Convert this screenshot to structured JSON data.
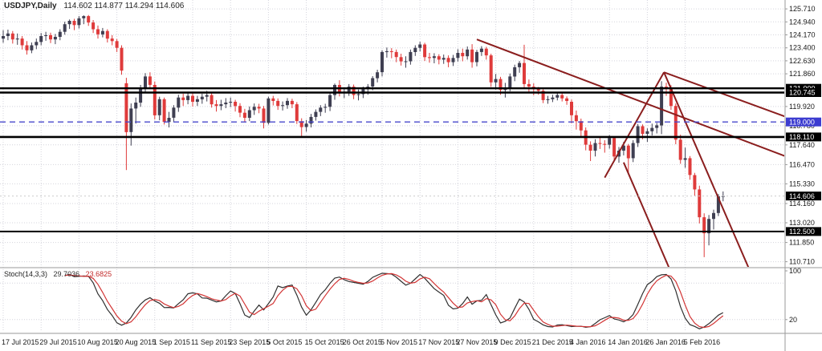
{
  "chart_data": {
    "type": "candlestick",
    "title": "USDJPY,Daily",
    "ohlc_display": "114.602 114.877 114.294 114.606",
    "price_range": [
      110.5,
      126.0
    ],
    "colors": {
      "bull": "#3f3f52",
      "bear": "#df3b3b",
      "trend": "#8b1e1e",
      "grid": "#d4d4dc",
      "axis_line": "#9a9a9a",
      "level_black": "#000000",
      "level_blue": "#4848cc",
      "current_price_box": "#000000"
    },
    "y_ticks": [
      125.71,
      124.94,
      124.17,
      123.4,
      122.63,
      121.86,
      119.92,
      118.78,
      117.64,
      116.47,
      115.33,
      114.16,
      113.02,
      111.85,
      110.71
    ],
    "price_axis_boxes": [
      {
        "price": 121.0,
        "text": "121.000",
        "bg": "#000000"
      },
      {
        "price": 120.745,
        "text": "120.745",
        "bg": "#000000"
      },
      {
        "price": 119.0,
        "text": "119.000",
        "bg": "#3c3cd0"
      },
      {
        "price": 118.11,
        "text": "118.110",
        "bg": "#000000"
      },
      {
        "price": 114.606,
        "text": "114.606",
        "bg": "#000000"
      },
      {
        "price": 112.5,
        "text": "112.500",
        "bg": "#000000"
      }
    ],
    "levels": [
      {
        "price": 121.0,
        "color": "#000000",
        "width": 2.4
      },
      {
        "price": 120.745,
        "color": "#000000",
        "width": 2.4
      },
      {
        "price": 119.0,
        "color": "#4848cc",
        "width": 1.4,
        "dash": "7,5"
      },
      {
        "price": 118.11,
        "color": "#000000",
        "width": 2.6
      },
      {
        "price": 112.5,
        "color": "#000000",
        "width": 2
      },
      {
        "price": 114.606,
        "color": "#cccccc",
        "width": 1,
        "dash": "2,3"
      }
    ],
    "trendlines": [
      {
        "i1": 100,
        "p1": 123.9,
        "i2": 178,
        "p2": 115.6
      },
      {
        "i1": 139.5,
        "p1": 121.95,
        "i2": 178,
        "p2": 118.0
      },
      {
        "i1": 127,
        "p1": 115.7,
        "i2": 139.5,
        "p2": 121.95
      },
      {
        "i1": 139.5,
        "p1": 121.95,
        "i2": 159,
        "p2": 109.3
      },
      {
        "i1": 131,
        "p1": 116.6,
        "i2": 142.5,
        "p2": 109.1
      }
    ],
    "x_labels": [
      {
        "i": 0,
        "t": "17 Jul 2015"
      },
      {
        "i": 8,
        "t": "29 Jul 2015"
      },
      {
        "i": 16,
        "t": "10 Aug 2015"
      },
      {
        "i": 24,
        "t": "20 Aug 2015"
      },
      {
        "i": 32,
        "t": "1 Sep 2015"
      },
      {
        "i": 40,
        "t": "11 Sep 2015"
      },
      {
        "i": 48,
        "t": "23 Sep 2015"
      },
      {
        "i": 56,
        "t": "5 Oct 2015"
      },
      {
        "i": 64,
        "t": "15 Oct 2015"
      },
      {
        "i": 72,
        "t": "26 Oct 2015"
      },
      {
        "i": 80,
        "t": "5 Nov 2015"
      },
      {
        "i": 88,
        "t": "17 Nov 2015"
      },
      {
        "i": 96,
        "t": "27 Nov 2015"
      },
      {
        "i": 104,
        "t": "9 Dec 2015"
      },
      {
        "i": 112,
        "t": "21 Dec 2015"
      },
      {
        "i": 120,
        "t": "4 Jan 2016"
      },
      {
        "i": 128,
        "t": "14 Jan 2016"
      },
      {
        "i": 136,
        "t": "26 Jan 2016"
      },
      {
        "i": 144,
        "t": "5 Feb 2016"
      }
    ],
    "candles": [
      [
        123.95,
        124.45,
        123.7,
        124.1
      ],
      [
        124.1,
        124.48,
        123.85,
        124.25
      ],
      [
        124.25,
        124.4,
        123.65,
        123.9
      ],
      [
        123.9,
        124.25,
        123.58,
        123.95
      ],
      [
        123.95,
        124.1,
        123.3,
        123.55
      ],
      [
        123.55,
        123.8,
        123.0,
        123.25
      ],
      [
        123.25,
        123.72,
        123.08,
        123.55
      ],
      [
        123.55,
        123.95,
        123.32,
        123.75
      ],
      [
        123.75,
        124.28,
        123.55,
        124.1
      ],
      [
        124.1,
        124.35,
        123.82,
        124.15
      ],
      [
        124.15,
        124.3,
        123.68,
        123.9
      ],
      [
        123.9,
        124.22,
        123.62,
        124.05
      ],
      [
        124.05,
        124.5,
        123.85,
        124.35
      ],
      [
        124.35,
        124.95,
        124.18,
        124.8
      ],
      [
        124.8,
        125.08,
        124.52,
        125.0
      ],
      [
        125.0,
        125.12,
        124.45,
        124.75
      ],
      [
        124.75,
        125.28,
        124.55,
        125.15
      ],
      [
        125.15,
        125.33,
        124.8,
        125.28
      ],
      [
        125.28,
        125.35,
        124.7,
        124.9
      ],
      [
        124.9,
        125.05,
        124.28,
        124.5
      ],
      [
        124.5,
        124.72,
        123.95,
        124.2
      ],
      [
        124.2,
        124.58,
        124.02,
        124.4
      ],
      [
        124.4,
        124.5,
        123.72,
        123.95
      ],
      [
        123.95,
        124.15,
        123.55,
        123.8
      ],
      [
        123.8,
        123.92,
        123.15,
        123.4
      ],
      [
        123.4,
        123.55,
        121.8,
        122.05
      ],
      [
        121.3,
        121.62,
        116.15,
        118.4
      ],
      [
        118.4,
        120.1,
        117.6,
        119.8
      ],
      [
        119.8,
        120.45,
        118.9,
        120.15
      ],
      [
        120.15,
        121.2,
        119.9,
        121.0
      ],
      [
        121.0,
        121.9,
        120.7,
        121.7
      ],
      [
        121.7,
        121.95,
        120.95,
        121.2
      ],
      [
        121.2,
        121.4,
        119.15,
        119.4
      ],
      [
        119.4,
        120.5,
        119.1,
        120.35
      ],
      [
        120.35,
        120.45,
        118.85,
        119.0
      ],
      [
        119.0,
        119.6,
        118.68,
        119.25
      ],
      [
        119.25,
        120.0,
        119.02,
        119.85
      ],
      [
        119.85,
        120.62,
        119.6,
        120.45
      ],
      [
        120.45,
        120.68,
        119.95,
        120.3
      ],
      [
        120.3,
        120.8,
        120.05,
        120.55
      ],
      [
        120.55,
        120.7,
        119.92,
        120.2
      ],
      [
        120.2,
        120.55,
        119.95,
        120.35
      ],
      [
        120.35,
        120.68,
        120.08,
        120.5
      ],
      [
        120.5,
        120.85,
        120.22,
        120.6
      ],
      [
        120.6,
        120.75,
        119.85,
        120.05
      ],
      [
        120.05,
        120.3,
        119.62,
        119.95
      ],
      [
        119.95,
        120.32,
        119.7,
        120.05
      ],
      [
        120.05,
        120.42,
        119.82,
        120.15
      ],
      [
        120.15,
        120.45,
        119.88,
        120.2
      ],
      [
        120.2,
        120.32,
        119.62,
        119.95
      ],
      [
        119.95,
        120.12,
        119.28,
        119.55
      ],
      [
        119.55,
        119.78,
        118.98,
        119.25
      ],
      [
        119.25,
        119.92,
        119.05,
        119.7
      ],
      [
        119.7,
        120.1,
        119.42,
        119.9
      ],
      [
        119.9,
        120.08,
        119.52,
        119.8
      ],
      [
        119.8,
        119.95,
        118.62,
        118.95
      ],
      [
        118.95,
        120.5,
        118.85,
        120.4
      ],
      [
        120.4,
        120.55,
        119.98,
        120.25
      ],
      [
        120.25,
        120.4,
        119.72,
        119.95
      ],
      [
        119.95,
        120.22,
        119.68,
        120.0
      ],
      [
        120.0,
        120.42,
        119.78,
        120.25
      ],
      [
        120.25,
        120.38,
        119.82,
        120.05
      ],
      [
        120.05,
        120.18,
        118.88,
        119.05
      ],
      [
        119.05,
        119.22,
        118.07,
        118.7
      ],
      [
        118.7,
        119.12,
        118.42,
        118.9
      ],
      [
        118.9,
        119.48,
        118.68,
        119.3
      ],
      [
        119.3,
        119.75,
        119.08,
        119.6
      ],
      [
        119.6,
        120.0,
        119.35,
        119.85
      ],
      [
        119.85,
        120.08,
        119.55,
        119.9
      ],
      [
        119.9,
        120.78,
        119.65,
        120.6
      ],
      [
        120.6,
        121.28,
        120.32,
        121.2
      ],
      [
        121.2,
        121.48,
        120.52,
        120.75
      ],
      [
        120.75,
        121.05,
        120.42,
        120.8
      ],
      [
        120.8,
        121.25,
        120.55,
        121.1
      ],
      [
        121.1,
        121.22,
        120.35,
        120.6
      ],
      [
        120.6,
        120.92,
        120.28,
        120.65
      ],
      [
        120.65,
        121.1,
        120.42,
        120.95
      ],
      [
        120.95,
        121.25,
        120.62,
        121.1
      ],
      [
        121.1,
        121.72,
        120.88,
        121.6
      ],
      [
        121.6,
        122.1,
        121.35,
        121.95
      ],
      [
        121.95,
        123.26,
        121.7,
        123.15
      ],
      [
        123.15,
        123.42,
        122.82,
        123.2
      ],
      [
        123.2,
        123.38,
        122.78,
        123.15
      ],
      [
        123.15,
        123.3,
        122.55,
        122.85
      ],
      [
        122.85,
        123.05,
        122.35,
        122.6
      ],
      [
        122.6,
        122.9,
        122.22,
        122.6
      ],
      [
        122.6,
        123.3,
        122.4,
        123.15
      ],
      [
        123.15,
        123.55,
        122.92,
        123.4
      ],
      [
        123.4,
        123.76,
        123.18,
        123.6
      ],
      [
        123.6,
        123.7,
        122.62,
        122.85
      ],
      [
        122.85,
        123.1,
        122.52,
        122.8
      ],
      [
        122.8,
        123.08,
        122.48,
        122.9
      ],
      [
        122.9,
        123.02,
        122.42,
        122.7
      ],
      [
        122.7,
        123.0,
        122.45,
        122.8
      ],
      [
        122.8,
        122.95,
        122.25,
        122.55
      ],
      [
        122.55,
        122.98,
        122.32,
        122.8
      ],
      [
        122.8,
        123.32,
        122.58,
        123.1
      ],
      [
        123.1,
        123.35,
        122.6,
        122.9
      ],
      [
        122.9,
        123.48,
        122.7,
        123.3
      ],
      [
        123.3,
        123.62,
        122.22,
        122.55
      ],
      [
        122.55,
        123.28,
        122.3,
        123.15
      ],
      [
        123.15,
        123.5,
        122.92,
        123.35
      ],
      [
        123.35,
        123.46,
        122.7,
        122.95
      ],
      [
        122.95,
        123.05,
        121.08,
        121.35
      ],
      [
        121.35,
        121.85,
        120.92,
        121.55
      ],
      [
        121.55,
        121.68,
        120.62,
        120.9
      ],
      [
        120.9,
        121.32,
        120.45,
        121.05
      ],
      [
        121.05,
        121.88,
        120.82,
        121.7
      ],
      [
        121.7,
        122.4,
        121.42,
        122.25
      ],
      [
        122.25,
        122.62,
        121.92,
        122.5
      ],
      [
        122.5,
        123.58,
        121.05,
        121.25
      ],
      [
        121.25,
        121.52,
        120.72,
        121.1
      ],
      [
        121.1,
        121.3,
        120.58,
        120.95
      ],
      [
        120.95,
        121.08,
        120.62,
        120.85
      ],
      [
        120.85,
        120.95,
        120.12,
        120.3
      ],
      [
        120.3,
        120.55,
        120.08,
        120.35
      ],
      [
        120.35,
        120.62,
        120.18,
        120.45
      ],
      [
        120.45,
        120.72,
        120.28,
        120.6
      ],
      [
        120.6,
        120.7,
        120.22,
        120.4
      ],
      [
        120.4,
        120.52,
        120.02,
        120.25
      ],
      [
        120.2,
        120.33,
        118.92,
        119.4
      ],
      [
        119.4,
        119.68,
        118.55,
        119.05
      ],
      [
        119.05,
        119.2,
        118.12,
        118.5
      ],
      [
        118.5,
        118.68,
        117.32,
        117.65
      ],
      [
        117.65,
        117.85,
        116.68,
        117.3
      ],
      [
        117.3,
        117.98,
        116.95,
        117.75
      ],
      [
        117.75,
        118.1,
        117.4,
        117.7
      ],
      [
        117.7,
        117.92,
        117.18,
        117.65
      ],
      [
        117.65,
        118.22,
        117.42,
        118.05
      ],
      [
        118.05,
        118.12,
        116.72,
        116.95
      ],
      [
        116.95,
        117.52,
        116.58,
        117.3
      ],
      [
        117.3,
        117.82,
        117.02,
        117.6
      ],
      [
        117.6,
        117.7,
        115.97,
        116.85
      ],
      [
        116.85,
        117.92,
        116.62,
        117.75
      ],
      [
        117.75,
        118.88,
        117.52,
        118.75
      ],
      [
        118.75,
        118.86,
        117.98,
        118.3
      ],
      [
        118.3,
        118.62,
        117.82,
        118.45
      ],
      [
        118.45,
        118.9,
        118.2,
        118.65
      ],
      [
        118.65,
        118.95,
        118.32,
        118.8
      ],
      [
        118.8,
        121.42,
        118.28,
        121.1
      ],
      [
        121.1,
        121.33,
        120.55,
        121.05
      ],
      [
        121.05,
        121.18,
        119.72,
        119.95
      ],
      [
        119.95,
        120.1,
        117.68,
        117.95
      ],
      [
        117.95,
        118.25,
        116.52,
        116.75
      ],
      [
        116.75,
        117.48,
        116.28,
        116.85
      ],
      [
        116.85,
        116.98,
        115.58,
        115.85
      ],
      [
        115.85,
        115.98,
        114.62,
        115.0
      ],
      [
        115.0,
        115.22,
        112.98,
        113.35
      ],
      [
        113.35,
        113.58,
        110.98,
        112.4
      ],
      [
        112.4,
        113.48,
        111.68,
        113.25
      ],
      [
        113.25,
        113.8,
        112.62,
        113.6
      ],
      [
        113.6,
        114.72,
        113.42,
        114.6
      ],
      [
        114.602,
        114.877,
        114.294,
        114.606
      ]
    ],
    "stochastic": {
      "title": "Stoch(14,3,3)",
      "k_value": "29.7036",
      "d_value": "23.6825",
      "period": 14,
      "smooth": 3,
      "signal": 3,
      "levels": [
        20,
        80
      ],
      "range": [
        0,
        100
      ],
      "axis_labels": [
        100,
        20
      ],
      "k_color": "#303030",
      "d_color": "#d23535"
    }
  }
}
